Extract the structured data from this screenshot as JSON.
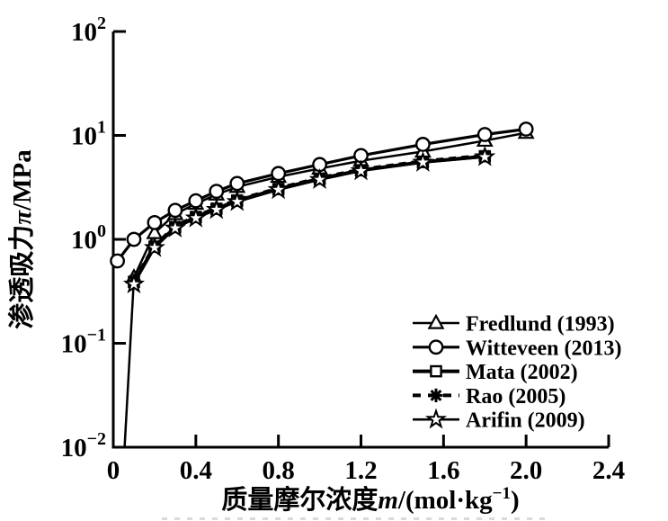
{
  "chart": {
    "background_color": "#ffffff",
    "ink_color": "#000000",
    "y_axis": {
      "label_cn": "渗透吸力",
      "label_var": "π",
      "label_unit": "/MPa",
      "tick_base": "10",
      "tick_exponents": [
        "2",
        "1",
        "0",
        "−1",
        "−2"
      ]
    },
    "x_axis": {
      "label_cn": "质量摩尔浓度",
      "label_var": "m",
      "label_unit_pre": "/(mol·kg",
      "label_unit_sup": "−1",
      "label_unit_post": ")",
      "tick_labels": [
        "0",
        "0.4",
        "0.8",
        "1.2",
        "1.6",
        "2.0",
        "2.4"
      ]
    }
  },
  "chart_data": {
    "type": "line",
    "title": "",
    "xlabel": "质量摩尔浓度m/(mol·kg−1)",
    "ylabel": "渗透吸力π/MPa",
    "x_range": [
      0,
      2.4
    ],
    "y_scale": "log10",
    "y_range": [
      0.01,
      100
    ],
    "x_tick_values": [
      0,
      0.4,
      0.8,
      1.2,
      1.6,
      2.0,
      2.4
    ],
    "y_tick_values": [
      100,
      10,
      1,
      0.1,
      0.01
    ],
    "grid": false,
    "legend_position": "inside-lower-right",
    "series": [
      {
        "name": "Fredlund (1993)",
        "marker": "triangle",
        "line": "solid",
        "line_width": 2.5,
        "skip_markers": [
          0
        ],
        "x": [
          0.055,
          0.1,
          0.2,
          0.3,
          0.4,
          0.5,
          0.6,
          0.8,
          1.0,
          1.2,
          1.5,
          1.8,
          2.0
        ],
        "y": [
          0.01,
          0.43,
          1.15,
          1.75,
          2.2,
          2.7,
          3.2,
          4.0,
          4.8,
          5.7,
          7.0,
          8.9,
          10.6
        ]
      },
      {
        "name": "Witteveen (2013)",
        "marker": "circle",
        "line": "solid",
        "line_width": 3.2,
        "skip_markers": [],
        "x": [
          0.02,
          0.1,
          0.2,
          0.3,
          0.4,
          0.5,
          0.6,
          0.8,
          1.0,
          1.2,
          1.5,
          1.8,
          2.0
        ],
        "y": [
          0.62,
          1.0,
          1.45,
          1.9,
          2.35,
          2.9,
          3.45,
          4.3,
          5.25,
          6.4,
          8.2,
          10.2,
          11.5
        ]
      },
      {
        "name": "Mata (2002)",
        "marker": "square",
        "line": "solid",
        "line_width": 4,
        "skip_markers": [],
        "x": [
          0.1,
          0.2,
          0.3,
          0.4,
          0.5,
          0.6,
          0.8,
          1.0,
          1.2,
          1.5,
          1.8
        ],
        "y": [
          0.39,
          0.85,
          1.31,
          1.64,
          1.97,
          2.36,
          3.05,
          3.83,
          4.62,
          5.55,
          6.3
        ]
      },
      {
        "name": "Rao (2005)",
        "marker": "asterisk",
        "line": "dashed",
        "line_width": 4,
        "skip_markers": [],
        "x": [
          0.1,
          0.2,
          0.3,
          0.4,
          0.5,
          0.6,
          0.8,
          1.0,
          1.2,
          1.5,
          1.8
        ],
        "y": [
          0.4,
          0.87,
          1.34,
          1.67,
          2.0,
          2.4,
          3.1,
          3.9,
          4.7,
          5.65,
          6.4
        ]
      },
      {
        "name": "Arifin (2009)",
        "marker": "star",
        "line": "solid",
        "line_width": 2.6,
        "skip_markers": [],
        "x": [
          0.1,
          0.2,
          0.3,
          0.4,
          0.5,
          0.6,
          0.8,
          1.0,
          1.2,
          1.5,
          1.8
        ],
        "y": [
          0.37,
          0.83,
          1.28,
          1.6,
          1.93,
          2.3,
          3.0,
          3.75,
          4.55,
          5.5,
          6.2
        ]
      }
    ]
  }
}
